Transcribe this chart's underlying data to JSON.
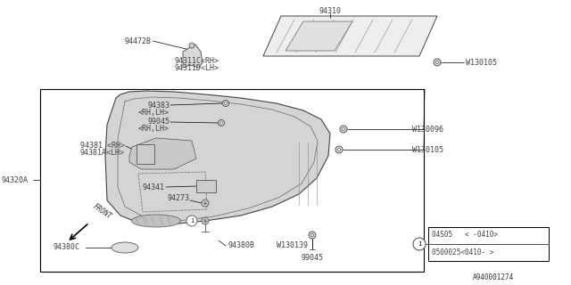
{
  "bg_color": "#ffffff",
  "line_color": "#000000",
  "fig_label": "A940001274",
  "label_94310": "94310",
  "label_94472B": "94472B",
  "label_943110RH": "94311C<RH>",
  "label_943110LH": "94311D<LH>",
  "label_W130105_top": "W130105",
  "label_94320A": "94320A",
  "label_94383": "94383",
  "label_94383b": "<RH,LH>",
  "label_99045a": "99045",
  "label_99045ab": "<RH,LH>",
  "label_94381": "94381 <RH>",
  "label_94381a": "94381A<LH>",
  "label_94341": "94341",
  "label_94273": "94273",
  "label_94380C": "94380C",
  "label_94380B": "94380B",
  "label_W130139": "W130139",
  "label_99045b": "99045",
  "label_W130096": "W130096",
  "label_W130105b": "W130105",
  "legend_line1": "04S05   < -0410>",
  "legend_line2": "0500025<0410- >"
}
